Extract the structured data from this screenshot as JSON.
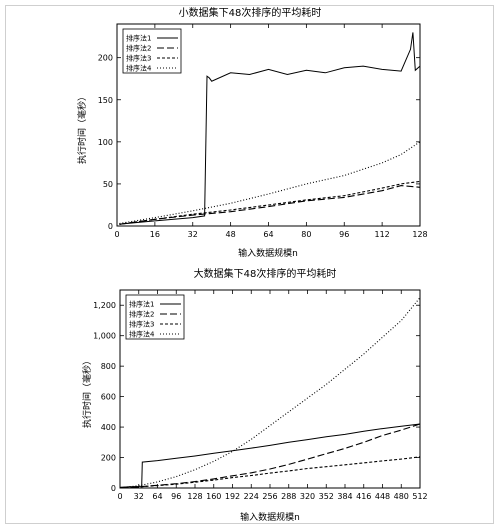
{
  "chart_data": [
    {
      "type": "line",
      "title": "小数据集下48次排序的平均耗时",
      "xlabel": "输入数据规模n",
      "ylabel": "执行时间（毫秒）",
      "xlim": [
        0,
        128
      ],
      "ylim": [
        0,
        240
      ],
      "xticks": [
        0,
        16,
        32,
        48,
        64,
        80,
        96,
        112,
        128
      ],
      "yticks": [
        0,
        50,
        100,
        150,
        200
      ],
      "legend_position": "top-left",
      "grid": false,
      "series": [
        {
          "name": "排序法1",
          "dash": "none",
          "x": [
            1,
            8,
            16,
            24,
            32,
            37,
            38,
            39,
            40,
            48,
            56,
            64,
            72,
            80,
            88,
            96,
            104,
            112,
            120,
            124,
            125,
            126,
            128
          ],
          "y": [
            2,
            4,
            6,
            8,
            10,
            12,
            178,
            176,
            172,
            182,
            180,
            186,
            180,
            185,
            182,
            188,
            190,
            186,
            184,
            210,
            230,
            185,
            190
          ]
        },
        {
          "name": "排序法2",
          "dash": "7,3",
          "x": [
            1,
            16,
            32,
            48,
            64,
            80,
            96,
            112,
            120,
            128
          ],
          "y": [
            2,
            8,
            13,
            17,
            23,
            30,
            34,
            42,
            48,
            46
          ]
        },
        {
          "name": "排序法3",
          "dash": "3,2",
          "x": [
            1,
            16,
            32,
            48,
            64,
            80,
            96,
            112,
            120,
            128
          ],
          "y": [
            2,
            8,
            14,
            19,
            25,
            31,
            36,
            45,
            50,
            53
          ]
        },
        {
          "name": "排序法4",
          "dash": "1,2",
          "x": [
            1,
            16,
            32,
            48,
            64,
            80,
            96,
            112,
            120,
            128
          ],
          "y": [
            3,
            10,
            18,
            27,
            38,
            50,
            60,
            75,
            85,
            100
          ]
        }
      ]
    },
    {
      "type": "line",
      "title": "大数据集下48次排序的平均耗时",
      "xlabel": "输入数据规模n",
      "ylabel": "执行时间（毫秒）",
      "xlim": [
        0,
        512
      ],
      "ylim": [
        0,
        1300
      ],
      "xticks": [
        0,
        32,
        64,
        96,
        128,
        160,
        192,
        224,
        256,
        288,
        320,
        352,
        384,
        416,
        448,
        480,
        512
      ],
      "yticks": [
        0,
        200,
        400,
        600,
        800,
        1000,
        1200
      ],
      "legend_position": "top-left",
      "grid": false,
      "series": [
        {
          "name": "排序法1",
          "dash": "none",
          "x": [
            1,
            16,
            32,
            36,
            37,
            38,
            64,
            96,
            128,
            160,
            192,
            224,
            256,
            288,
            320,
            352,
            384,
            416,
            448,
            480,
            512
          ],
          "y": [
            5,
            8,
            10,
            12,
            14,
            170,
            180,
            195,
            210,
            228,
            245,
            262,
            280,
            300,
            318,
            336,
            352,
            372,
            390,
            405,
            420
          ]
        },
        {
          "name": "排序法2",
          "dash": "7,3",
          "x": [
            1,
            32,
            64,
            96,
            128,
            160,
            192,
            224,
            256,
            288,
            320,
            352,
            384,
            416,
            448,
            480,
            512
          ],
          "y": [
            2,
            8,
            18,
            28,
            42,
            60,
            80,
            100,
            125,
            155,
            190,
            225,
            260,
            300,
            345,
            380,
            420
          ]
        },
        {
          "name": "排序法3",
          "dash": "3,2",
          "x": [
            1,
            32,
            64,
            96,
            128,
            160,
            192,
            224,
            256,
            288,
            320,
            352,
            384,
            416,
            448,
            480,
            512
          ],
          "y": [
            2,
            7,
            16,
            25,
            38,
            52,
            68,
            82,
            98,
            112,
            128,
            140,
            152,
            165,
            178,
            190,
            205
          ]
        },
        {
          "name": "排序法4",
          "dash": "1,2",
          "x": [
            1,
            32,
            64,
            96,
            128,
            160,
            192,
            224,
            256,
            288,
            320,
            352,
            384,
            416,
            448,
            480,
            512
          ],
          "y": [
            2,
            15,
            40,
            75,
            120,
            175,
            240,
            320,
            410,
            500,
            590,
            680,
            780,
            880,
            990,
            1100,
            1250
          ]
        }
      ]
    }
  ]
}
